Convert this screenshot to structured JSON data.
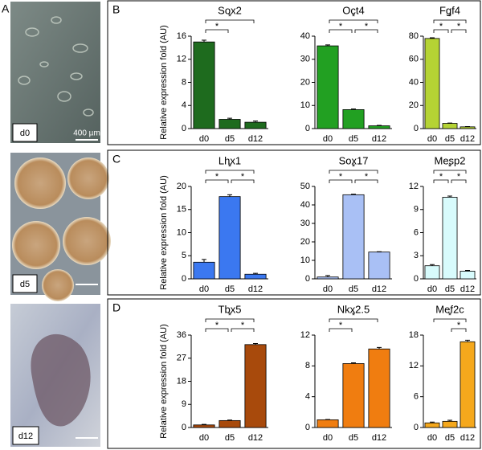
{
  "panel_labels": [
    "A",
    "B",
    "C",
    "D"
  ],
  "images": [
    {
      "label": "d0",
      "scale_bar": "400 µm"
    },
    {
      "label": "d5"
    },
    {
      "label": "d12"
    }
  ],
  "y_axis_label": "Relative expression fold (AU)",
  "chart_data": [
    {
      "type": "bar",
      "title": "Sox2",
      "categories": [
        "d0",
        "d5",
        "d12"
      ],
      "values": [
        15.0,
        1.6,
        1.1
      ],
      "errors": [
        0.3,
        0.2,
        0.2
      ],
      "color": "#1e6b1e",
      "ylim": [
        0,
        16
      ],
      "yticks": [
        0,
        4,
        8,
        12,
        16
      ],
      "brackets": [
        {
          "between": [
            "d0",
            "d12"
          ],
          "label": "*"
        },
        {
          "between": [
            "d0",
            "d5"
          ],
          "label": "*"
        }
      ]
    },
    {
      "type": "bar",
      "title": "Oct4",
      "categories": [
        "d0",
        "d5",
        "d12"
      ],
      "values": [
        35.8,
        8.2,
        1.2
      ],
      "errors": [
        0.4,
        0.3,
        0.2
      ],
      "color": "#22a022",
      "ylim": [
        0,
        40
      ],
      "yticks": [
        0,
        10,
        20,
        30,
        40
      ],
      "brackets": [
        {
          "between": [
            "d0",
            "d12"
          ],
          "label": "*"
        },
        {
          "between": [
            "d0",
            "d5"
          ],
          "label": "*"
        },
        {
          "between": [
            "d5",
            "d12"
          ],
          "label": "*"
        }
      ]
    },
    {
      "type": "bar",
      "title": "Fgf4",
      "categories": [
        "d0",
        "d5",
        "d12"
      ],
      "values": [
        78,
        4.5,
        1.5
      ],
      "errors": [
        0.6,
        0.3,
        0.2
      ],
      "color": "#b5d334",
      "ylim": [
        0,
        80
      ],
      "yticks": [
        0,
        20,
        40,
        60,
        80
      ],
      "brackets": [
        {
          "between": [
            "d0",
            "d12"
          ],
          "label": "*"
        },
        {
          "between": [
            "d0",
            "d5"
          ],
          "label": "*"
        },
        {
          "between": [
            "d5",
            "d12"
          ],
          "label": "*"
        }
      ]
    },
    {
      "type": "bar",
      "title": "Lhx1",
      "categories": [
        "d0",
        "d5",
        "d12"
      ],
      "values": [
        3.6,
        17.8,
        1.0
      ],
      "errors": [
        0.6,
        0.4,
        0.2
      ],
      "color": "#3b78f0",
      "ylim": [
        0,
        20
      ],
      "yticks": [
        0,
        5,
        10,
        15,
        20
      ],
      "brackets": [
        {
          "between": [
            "d0",
            "d12"
          ],
          "label": "*"
        },
        {
          "between": [
            "d0",
            "d5"
          ],
          "label": "*"
        },
        {
          "between": [
            "d5",
            "d12"
          ],
          "label": "*"
        }
      ]
    },
    {
      "type": "bar",
      "title": "Sox17",
      "categories": [
        "d0",
        "d5",
        "d12"
      ],
      "values": [
        1.0,
        45.5,
        14.5
      ],
      "errors": [
        0.8,
        0.3,
        0.2
      ],
      "color": "#a9c0f5",
      "ylim": [
        0,
        50
      ],
      "yticks": [
        0,
        10,
        20,
        30,
        40,
        50
      ],
      "brackets": [
        {
          "between": [
            "d0",
            "d12"
          ],
          "label": "*"
        },
        {
          "between": [
            "d0",
            "d5"
          ],
          "label": "*"
        },
        {
          "between": [
            "d5",
            "d12"
          ],
          "label": "*"
        }
      ]
    },
    {
      "type": "bar",
      "title": "Mesp2",
      "categories": [
        "d0",
        "d5",
        "d12"
      ],
      "values": [
        1.7,
        10.6,
        1.0
      ],
      "errors": [
        0.15,
        0.15,
        0.1
      ],
      "color": "#d8fbfc",
      "ylim": [
        0,
        12
      ],
      "yticks": [
        0,
        3,
        6,
        9,
        12
      ],
      "brackets": [
        {
          "between": [
            "d0",
            "d12"
          ],
          "label": "*"
        },
        {
          "between": [
            "d0",
            "d5"
          ],
          "label": "*"
        },
        {
          "between": [
            "d5",
            "d12"
          ],
          "label": "*"
        }
      ]
    },
    {
      "type": "bar",
      "title": "Tbx5",
      "categories": [
        "d0",
        "d5",
        "d12"
      ],
      "values": [
        1.0,
        2.7,
        32.3
      ],
      "errors": [
        0.2,
        0.2,
        0.4
      ],
      "color": "#a84a0c",
      "ylim": [
        0,
        36
      ],
      "yticks": [
        0,
        9,
        18,
        27,
        36
      ],
      "brackets": [
        {
          "between": [
            "d0",
            "d12"
          ],
          "label": "*"
        },
        {
          "between": [
            "d0",
            "d5"
          ],
          "label": "*"
        },
        {
          "between": [
            "d5",
            "d12"
          ],
          "label": "*"
        }
      ]
    },
    {
      "type": "bar",
      "title": "Nkx2.5",
      "categories": [
        "d0",
        "d5",
        "d12"
      ],
      "values": [
        1.0,
        8.3,
        10.2
      ],
      "errors": [
        0.05,
        0.1,
        0.2
      ],
      "color": "#f07d10",
      "ylim": [
        0,
        12
      ],
      "yticks": [
        0,
        4,
        8,
        12
      ],
      "brackets": [
        {
          "between": [
            "d0",
            "d12"
          ],
          "label": "*"
        },
        {
          "between": [
            "d0",
            "d5"
          ],
          "label": "*"
        }
      ]
    },
    {
      "type": "bar",
      "title": "Mef2c",
      "categories": [
        "d0",
        "d5",
        "d12"
      ],
      "values": [
        0.9,
        1.2,
        16.7
      ],
      "errors": [
        0.15,
        0.2,
        0.3
      ],
      "color": "#f5a81c",
      "ylim": [
        0,
        18
      ],
      "yticks": [
        0,
        6,
        12,
        18
      ],
      "brackets": [
        {
          "between": [
            "d0",
            "d12"
          ],
          "label": "*"
        },
        {
          "between": [
            "d5",
            "d12"
          ],
          "label": "*"
        }
      ]
    }
  ]
}
